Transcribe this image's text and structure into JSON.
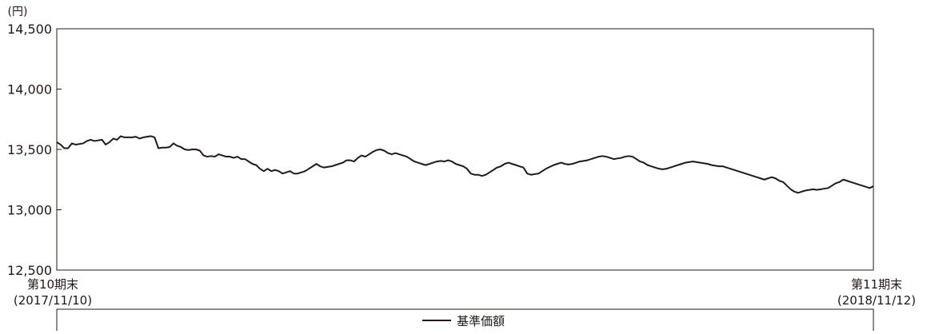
{
  "chart_data": {
    "type": "line",
    "y_unit": "(円)",
    "ylim": [
      12500,
      14500
    ],
    "yticks": [
      "14,500",
      "14,000",
      "13,500",
      "13,000",
      "12,500"
    ],
    "ytick_values": [
      14500,
      14000,
      13500,
      13000,
      12500
    ],
    "x_start_label": [
      "第10期末",
      "(2017/11/10)"
    ],
    "x_end_label": [
      "第11期末",
      "(2018/11/12)"
    ],
    "grid": false,
    "legend_position": "bottom",
    "series": [
      {
        "name": "基準価額",
        "color": "#231815",
        "values": [
          13560,
          13540,
          13510,
          13510,
          13550,
          13540,
          13545,
          13550,
          13570,
          13580,
          13570,
          13575,
          13580,
          13540,
          13560,
          13590,
          13580,
          13610,
          13600,
          13600,
          13600,
          13605,
          13590,
          13600,
          13605,
          13610,
          13600,
          13510,
          13515,
          13515,
          13520,
          13550,
          13530,
          13520,
          13500,
          13495,
          13500,
          13500,
          13490,
          13450,
          13440,
          13445,
          13440,
          13460,
          13450,
          13440,
          13440,
          13430,
          13440,
          13420,
          13420,
          13400,
          13380,
          13370,
          13340,
          13320,
          13340,
          13320,
          13330,
          13320,
          13300,
          13310,
          13320,
          13300,
          13300,
          13310,
          13320,
          13340,
          13360,
          13380,
          13360,
          13350,
          13355,
          13360,
          13370,
          13380,
          13390,
          13410,
          13410,
          13400,
          13430,
          13450,
          13440,
          13460,
          13480,
          13495,
          13500,
          13490,
          13470,
          13460,
          13470,
          13460,
          13450,
          13440,
          13420,
          13400,
          13390,
          13380,
          13370,
          13380,
          13390,
          13400,
          13405,
          13400,
          13410,
          13400,
          13380,
          13370,
          13360,
          13340,
          13300,
          13290,
          13290,
          13280,
          13290,
          13310,
          13330,
          13350,
          13360,
          13380,
          13390,
          13380,
          13370,
          13360,
          13350,
          13300,
          13290,
          13295,
          13300,
          13320,
          13340,
          13355,
          13370,
          13380,
          13390,
          13380,
          13375,
          13380,
          13390,
          13400,
          13405,
          13410,
          13420,
          13430,
          13440,
          13445,
          13440,
          13430,
          13420,
          13425,
          13430,
          13440,
          13445,
          13440,
          13420,
          13400,
          13390,
          13370,
          13360,
          13350,
          13340,
          13335,
          13340,
          13350,
          13360,
          13370,
          13380,
          13390,
          13395,
          13400,
          13395,
          13390,
          13385,
          13380,
          13370,
          13365,
          13360,
          13360,
          13350,
          13340,
          13330,
          13320,
          13310,
          13300,
          13290,
          13280,
          13270,
          13260,
          13250,
          13260,
          13270,
          13260,
          13240,
          13230,
          13200,
          13170,
          13150,
          13140,
          13150,
          13160,
          13165,
          13170,
          13165,
          13170,
          13175,
          13180,
          13200,
          13220,
          13230,
          13250,
          13240,
          13230,
          13220,
          13210,
          13200,
          13190,
          13180,
          13195
        ]
      }
    ]
  }
}
